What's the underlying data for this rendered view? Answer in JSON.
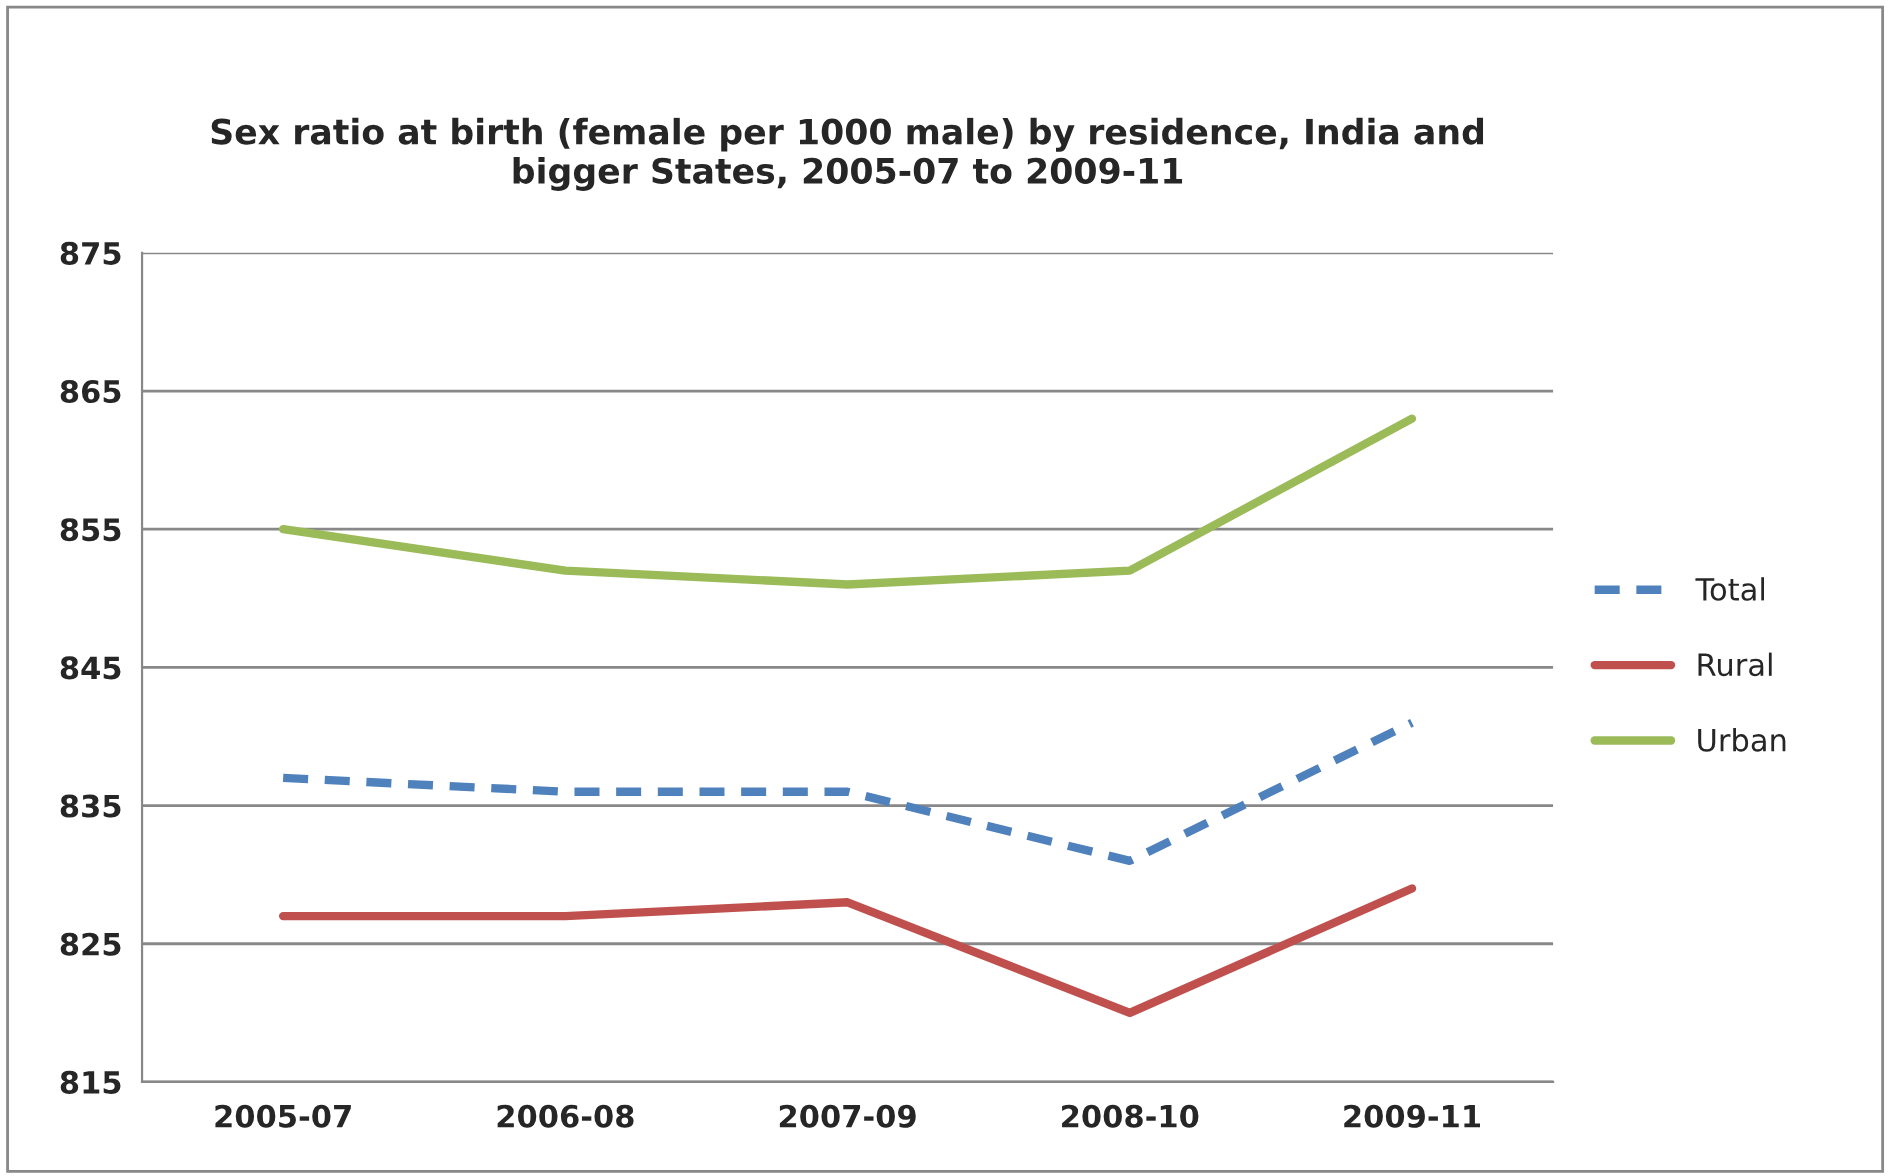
{
  "chart_data": {
    "type": "line",
    "title": "Sex ratio at birth (female per 1000 male) by residence, India and\nbigger States, 2005-07 to 2009-11",
    "categories": [
      "2005-07",
      "2006-08",
      "2007-09",
      "2008-10",
      "2009-11"
    ],
    "series": [
      {
        "name": "Total",
        "color": "#4f81bd",
        "values": [
          837,
          836,
          836,
          831,
          841
        ],
        "line_style": "dashed"
      },
      {
        "name": "Rural",
        "color": "#c0504d",
        "values": [
          827,
          827,
          828,
          820,
          829
        ]
      },
      {
        "name": "Urban",
        "color": "#9bbb59",
        "values": [
          855,
          852,
          851,
          852,
          863
        ]
      }
    ],
    "ylim": [
      815,
      875
    ],
    "yticks": [
      815,
      825,
      835,
      845,
      855,
      865,
      875
    ],
    "grid": "y",
    "legend": "right",
    "marker": "none"
  }
}
